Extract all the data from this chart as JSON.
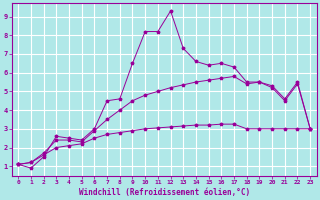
{
  "xlabel": "Windchill (Refroidissement éolien,°C)",
  "bg_color": "#b0e8e8",
  "grid_color": "#c0e8e8",
  "line_color": "#990099",
  "xlim": [
    -0.5,
    23.5
  ],
  "ylim": [
    0.5,
    9.7
  ],
  "xticks": [
    0,
    1,
    2,
    3,
    4,
    5,
    6,
    7,
    8,
    9,
    10,
    11,
    12,
    13,
    14,
    15,
    16,
    17,
    18,
    19,
    20,
    21,
    22,
    23
  ],
  "yticks": [
    1,
    2,
    3,
    4,
    5,
    6,
    7,
    8,
    9
  ],
  "series1_x": [
    0,
    1,
    2,
    3,
    4,
    5,
    6,
    7,
    8,
    9,
    10,
    11,
    12,
    13,
    14,
    15,
    16,
    17,
    18,
    19,
    20,
    21,
    22,
    23
  ],
  "series1_y": [
    1.1,
    0.9,
    1.5,
    2.6,
    2.5,
    2.4,
    3.0,
    4.5,
    4.6,
    6.5,
    8.2,
    8.2,
    9.3,
    7.3,
    6.6,
    6.4,
    6.5,
    6.3,
    5.5,
    5.5,
    5.2,
    4.5,
    5.4,
    3.0
  ],
  "series2_x": [
    0,
    1,
    2,
    3,
    4,
    5,
    6,
    7,
    8,
    9,
    10,
    11,
    12,
    13,
    14,
    15,
    16,
    17,
    18,
    19,
    20,
    21,
    22,
    23
  ],
  "series2_y": [
    1.1,
    1.2,
    1.7,
    2.4,
    2.4,
    2.3,
    2.9,
    3.5,
    4.0,
    4.5,
    4.8,
    5.0,
    5.2,
    5.35,
    5.5,
    5.6,
    5.7,
    5.8,
    5.4,
    5.5,
    5.3,
    4.6,
    5.5,
    3.0
  ],
  "series3_x": [
    0,
    1,
    2,
    3,
    4,
    5,
    6,
    7,
    8,
    9,
    10,
    11,
    12,
    13,
    14,
    15,
    16,
    17,
    18,
    19,
    20,
    21,
    22,
    23
  ],
  "series3_y": [
    1.1,
    1.2,
    1.6,
    2.0,
    2.1,
    2.2,
    2.5,
    2.7,
    2.8,
    2.9,
    3.0,
    3.05,
    3.1,
    3.15,
    3.2,
    3.2,
    3.25,
    3.25,
    3.0,
    3.0,
    3.0,
    3.0,
    3.0,
    3.0
  ]
}
